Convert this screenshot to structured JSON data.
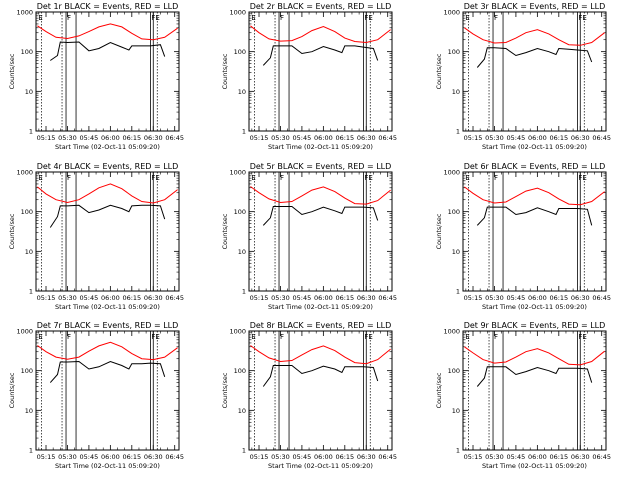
{
  "figure": {
    "xlabel": "Start Time (02-Oct-11 05:09:20)",
    "ylabel": "Counts/sec",
    "x_tick_labels": [
      "05:15",
      "05:30",
      "05:45",
      "06:00",
      "06:15",
      "06:30",
      "06:45"
    ],
    "y_tick_labels": [
      "1",
      "10",
      "100",
      "1000"
    ]
  },
  "colors": {
    "events": "#000000",
    "lld": "#ff0000"
  },
  "chart_data": [
    {
      "type": "line",
      "title": "Det 1r BLACK = Events, RED = LLD",
      "xlabel": "Start Time (02-Oct-11 05:09:20)",
      "ylabel": "Counts/sec",
      "x_range": [
        "05:08",
        "06:48"
      ],
      "ylim": [
        1,
        1000
      ],
      "y_scale": "log",
      "markers": [
        {
          "text": "E",
          "x": "05:09"
        },
        {
          "text": "F",
          "x": "05:29"
        },
        {
          "text": "FE",
          "x": "06:28"
        }
      ],
      "series": [
        {
          "name": "Events",
          "x": [
            "05:18",
            "05:23",
            "05:25",
            "05:30",
            "05:38",
            "05:45",
            "05:52",
            "06:00",
            "06:08",
            "06:13",
            "06:15",
            "06:22",
            "06:28",
            "06:35",
            "06:38"
          ],
          "values": [
            60,
            80,
            175,
            170,
            175,
            105,
            120,
            170,
            130,
            110,
            140,
            140,
            140,
            150,
            75
          ]
        },
        {
          "name": "LLD",
          "x": [
            "05:09",
            "05:15",
            "05:22",
            "05:30",
            "05:38",
            "05:45",
            "05:52",
            "06:00",
            "06:08",
            "06:15",
            "06:22",
            "06:30",
            "06:38",
            "06:47"
          ],
          "values": [
            450,
            320,
            230,
            215,
            250,
            320,
            420,
            500,
            420,
            290,
            210,
            200,
            230,
            390
          ]
        }
      ]
    },
    {
      "type": "line",
      "title": "Det 2r BLACK = Events, RED = LLD",
      "xlabel": "Start Time (02-Oct-11 05:09:20)",
      "ylabel": "Counts/sec",
      "x_range": [
        "05:08",
        "06:48"
      ],
      "ylim": [
        1,
        1000
      ],
      "y_scale": "log",
      "markers": [
        {
          "text": "E",
          "x": "05:09"
        },
        {
          "text": "F",
          "x": "05:29"
        },
        {
          "text": "FE",
          "x": "06:28"
        }
      ],
      "series": [
        {
          "name": "Events",
          "x": [
            "05:18",
            "05:23",
            "05:25",
            "05:30",
            "05:38",
            "05:45",
            "05:52",
            "06:00",
            "06:08",
            "06:13",
            "06:15",
            "06:22",
            "06:28",
            "06:35",
            "06:38"
          ],
          "values": [
            45,
            70,
            140,
            140,
            140,
            90,
            100,
            135,
            110,
            95,
            140,
            140,
            130,
            120,
            60
          ]
        },
        {
          "name": "LLD",
          "x": [
            "05:09",
            "05:15",
            "05:22",
            "05:30",
            "05:38",
            "05:45",
            "05:52",
            "06:00",
            "06:08",
            "06:15",
            "06:22",
            "06:30",
            "06:38",
            "06:47"
          ],
          "values": [
            450,
            300,
            210,
            185,
            190,
            240,
            340,
            430,
            320,
            220,
            180,
            170,
            200,
            360
          ]
        }
      ]
    },
    {
      "type": "line",
      "title": "Det 3r BLACK = Events, RED = LLD",
      "xlabel": "Start Time (02-Oct-11 05:09:20)",
      "ylabel": "Counts/sec",
      "x_range": [
        "05:08",
        "06:48"
      ],
      "ylim": [
        1,
        1000
      ],
      "y_scale": "log",
      "markers": [
        {
          "text": "E",
          "x": "05:09"
        },
        {
          "text": "F",
          "x": "05:29"
        },
        {
          "text": "FE",
          "x": "06:28"
        }
      ],
      "series": [
        {
          "name": "Events",
          "x": [
            "05:18",
            "05:23",
            "05:25",
            "05:30",
            "05:38",
            "05:45",
            "05:52",
            "06:00",
            "06:08",
            "06:13",
            "06:15",
            "06:22",
            "06:28",
            "06:35",
            "06:38"
          ],
          "values": [
            40,
            65,
            125,
            125,
            120,
            80,
            95,
            120,
            100,
            85,
            120,
            115,
            110,
            105,
            55
          ]
        },
        {
          "name": "LLD",
          "x": [
            "05:09",
            "05:15",
            "05:22",
            "05:30",
            "05:38",
            "05:45",
            "05:52",
            "06:00",
            "06:08",
            "06:15",
            "06:22",
            "06:30",
            "06:38",
            "06:47"
          ],
          "values": [
            400,
            280,
            200,
            165,
            170,
            220,
            300,
            360,
            280,
            200,
            150,
            145,
            170,
            300
          ]
        }
      ]
    },
    {
      "type": "line",
      "title": "Det 4r BLACK = Events, RED = LLD",
      "xlabel": "Start Time (02-Oct-11 05:09:20)",
      "ylabel": "Counts/sec",
      "x_range": [
        "05:08",
        "06:48"
      ],
      "ylim": [
        1,
        1000
      ],
      "y_scale": "log",
      "markers": [
        {
          "text": "E",
          "x": "05:09"
        },
        {
          "text": "F",
          "x": "05:29"
        },
        {
          "text": "FE",
          "x": "06:28"
        }
      ],
      "series": [
        {
          "name": "Events",
          "x": [
            "05:18",
            "05:23",
            "05:25",
            "05:30",
            "05:38",
            "05:45",
            "05:52",
            "06:00",
            "06:08",
            "06:13",
            "06:15",
            "06:22",
            "06:28",
            "06:35",
            "06:38"
          ],
          "values": [
            40,
            75,
            140,
            140,
            145,
            95,
            110,
            145,
            120,
            100,
            140,
            145,
            145,
            140,
            65
          ]
        },
        {
          "name": "LLD",
          "x": [
            "05:09",
            "05:15",
            "05:22",
            "05:30",
            "05:38",
            "05:45",
            "05:52",
            "06:00",
            "06:08",
            "06:15",
            "06:22",
            "06:30",
            "06:38",
            "06:47"
          ],
          "values": [
            420,
            280,
            200,
            170,
            200,
            280,
            400,
            500,
            380,
            250,
            180,
            165,
            200,
            360
          ]
        }
      ]
    },
    {
      "type": "line",
      "title": "Det 5r BLACK = Events, RED = LLD",
      "xlabel": "Start Time (02-Oct-11 05:09:20)",
      "ylabel": "Counts/sec",
      "x_range": [
        "05:08",
        "06:48"
      ],
      "ylim": [
        1,
        1000
      ],
      "y_scale": "log",
      "markers": [
        {
          "text": "E",
          "x": "05:09"
        },
        {
          "text": "F",
          "x": "05:29"
        },
        {
          "text": "FE",
          "x": "06:28"
        }
      ],
      "series": [
        {
          "name": "Events",
          "x": [
            "05:18",
            "05:23",
            "05:25",
            "05:30",
            "05:38",
            "05:45",
            "05:52",
            "06:00",
            "06:08",
            "06:13",
            "06:15",
            "06:22",
            "06:28",
            "06:35",
            "06:38"
          ],
          "values": [
            45,
            70,
            135,
            135,
            135,
            85,
            100,
            130,
            105,
            90,
            130,
            130,
            130,
            125,
            60
          ]
        },
        {
          "name": "LLD",
          "x": [
            "05:09",
            "05:15",
            "05:22",
            "05:30",
            "05:38",
            "05:45",
            "05:52",
            "06:00",
            "06:08",
            "06:15",
            "06:22",
            "06:30",
            "06:38",
            "06:47"
          ],
          "values": [
            430,
            300,
            210,
            170,
            180,
            250,
            350,
            420,
            320,
            220,
            160,
            155,
            190,
            350
          ]
        }
      ]
    },
    {
      "type": "line",
      "title": "Det 6r BLACK = Events, RED = LLD",
      "xlabel": "Start Time (02-Oct-11 05:09:20)",
      "ylabel": "Counts/sec",
      "x_range": [
        "05:08",
        "06:48"
      ],
      "ylim": [
        1,
        1000
      ],
      "y_scale": "log",
      "markers": [
        {
          "text": "E",
          "x": "05:09"
        },
        {
          "text": "F",
          "x": "05:29"
        },
        {
          "text": "FE",
          "x": "06:28"
        }
      ],
      "series": [
        {
          "name": "Events",
          "x": [
            "05:18",
            "05:23",
            "05:25",
            "05:30",
            "05:38",
            "05:45",
            "05:52",
            "06:00",
            "06:08",
            "06:13",
            "06:15",
            "06:22",
            "06:28",
            "06:35",
            "06:38"
          ],
          "values": [
            45,
            70,
            130,
            130,
            130,
            85,
            95,
            125,
            100,
            85,
            120,
            120,
            120,
            115,
            45
          ]
        },
        {
          "name": "LLD",
          "x": [
            "05:09",
            "05:15",
            "05:22",
            "05:30",
            "05:38",
            "05:45",
            "05:52",
            "06:00",
            "06:08",
            "06:15",
            "06:22",
            "06:30",
            "06:38",
            "06:47"
          ],
          "values": [
            420,
            290,
            200,
            165,
            175,
            240,
            330,
            390,
            300,
            210,
            155,
            150,
            180,
            320
          ]
        }
      ]
    },
    {
      "type": "line",
      "title": "Det 7r BLACK = Events, RED = LLD",
      "xlabel": "Start Time (02-Oct-11 05:09:20)",
      "ylabel": "Counts/sec",
      "x_range": [
        "05:08",
        "06:48"
      ],
      "ylim": [
        1,
        1000
      ],
      "y_scale": "log",
      "markers": [
        {
          "text": "E",
          "x": "05:09"
        },
        {
          "text": "F",
          "x": "05:29"
        },
        {
          "text": "FE",
          "x": "06:28"
        }
      ],
      "series": [
        {
          "name": "Events",
          "x": [
            "05:18",
            "05:23",
            "05:25",
            "05:30",
            "05:38",
            "05:45",
            "05:52",
            "06:00",
            "06:08",
            "06:13",
            "06:15",
            "06:22",
            "06:28",
            "06:35",
            "06:38"
          ],
          "values": [
            50,
            80,
            165,
            165,
            170,
            110,
            125,
            170,
            135,
            110,
            150,
            150,
            155,
            150,
            70
          ]
        },
        {
          "name": "LLD",
          "x": [
            "05:09",
            "05:15",
            "05:22",
            "05:30",
            "05:38",
            "05:45",
            "05:52",
            "06:00",
            "06:08",
            "06:15",
            "06:22",
            "06:30",
            "06:38",
            "06:47"
          ],
          "values": [
            430,
            300,
            220,
            195,
            220,
            310,
            420,
            520,
            400,
            270,
            200,
            190,
            220,
            380
          ]
        }
      ]
    },
    {
      "type": "line",
      "title": "Det 8r BLACK = Events, RED = LLD",
      "xlabel": "Start Time (02-Oct-11 05:09:20)",
      "ylabel": "Counts/sec",
      "x_range": [
        "05:08",
        "06:48"
      ],
      "ylim": [
        1,
        1000
      ],
      "y_scale": "log",
      "markers": [
        {
          "text": "E",
          "x": "05:09"
        },
        {
          "text": "F",
          "x": "05:29"
        },
        {
          "text": "FE",
          "x": "06:28"
        }
      ],
      "series": [
        {
          "name": "Events",
          "x": [
            "05:18",
            "05:23",
            "05:25",
            "05:30",
            "05:38",
            "05:45",
            "05:52",
            "06:00",
            "06:08",
            "06:13",
            "06:15",
            "06:22",
            "06:28",
            "06:35",
            "06:38"
          ],
          "values": [
            40,
            70,
            135,
            135,
            135,
            85,
            100,
            130,
            110,
            90,
            125,
            125,
            125,
            120,
            55
          ]
        },
        {
          "name": "LLD",
          "x": [
            "05:09",
            "05:15",
            "05:22",
            "05:30",
            "05:38",
            "05:45",
            "05:52",
            "06:00",
            "06:08",
            "06:15",
            "06:22",
            "06:30",
            "06:38",
            "06:47"
          ],
          "values": [
            430,
            300,
            210,
            170,
            180,
            250,
            340,
            420,
            320,
            220,
            160,
            150,
            190,
            350
          ]
        }
      ]
    },
    {
      "type": "line",
      "title": "Det 9r BLACK = Events, RED = LLD",
      "xlabel": "Start Time (02-Oct-11 05:09:20)",
      "ylabel": "Counts/sec",
      "x_range": [
        "05:08",
        "06:48"
      ],
      "ylim": [
        1,
        1000
      ],
      "y_scale": "log",
      "markers": [
        {
          "text": "E",
          "x": "05:09"
        },
        {
          "text": "F",
          "x": "05:29"
        },
        {
          "text": "FE",
          "x": "06:28"
        }
      ],
      "series": [
        {
          "name": "Events",
          "x": [
            "05:18",
            "05:23",
            "05:25",
            "05:30",
            "05:38",
            "05:45",
            "05:52",
            "06:00",
            "06:08",
            "06:13",
            "06:15",
            "06:22",
            "06:28",
            "06:35",
            "06:38"
          ],
          "values": [
            40,
            65,
            125,
            125,
            125,
            80,
            95,
            120,
            100,
            85,
            115,
            115,
            115,
            110,
            50
          ]
        },
        {
          "name": "LLD",
          "x": [
            "05:09",
            "05:15",
            "05:22",
            "05:30",
            "05:38",
            "05:45",
            "05:52",
            "06:00",
            "06:08",
            "06:15",
            "06:22",
            "06:30",
            "06:38",
            "06:47"
          ],
          "values": [
            400,
            280,
            190,
            155,
            165,
            220,
            300,
            360,
            280,
            200,
            145,
            140,
            170,
            310
          ]
        }
      ]
    }
  ]
}
